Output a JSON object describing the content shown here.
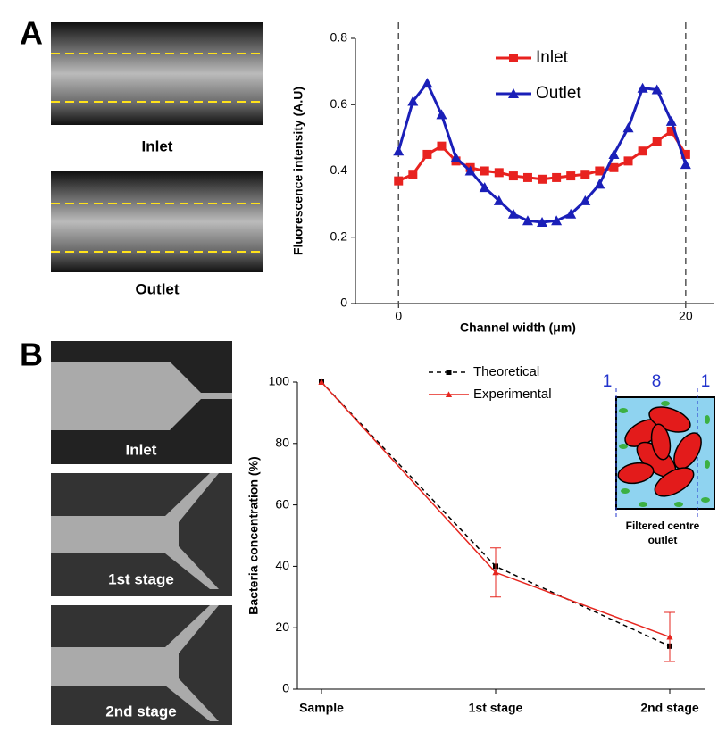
{
  "chart_data": [
    {
      "type": "line",
      "panel": "A",
      "image_captions": [
        "Inlet",
        "Outlet"
      ],
      "xlabel": "Channel width (μm)",
      "ylabel": "Fluorescence intensity (A.U)",
      "x": [
        0,
        1,
        2,
        3,
        4,
        5,
        6,
        7,
        8,
        9,
        10,
        11,
        12,
        13,
        14,
        15,
        16,
        17,
        18,
        19,
        20
      ],
      "series": [
        {
          "name": "Inlet",
          "color": "#e8221f",
          "marker": "square",
          "values": [
            0.37,
            0.39,
            0.45,
            0.475,
            0.43,
            0.41,
            0.4,
            0.395,
            0.385,
            0.38,
            0.375,
            0.38,
            0.385,
            0.39,
            0.4,
            0.41,
            0.43,
            0.46,
            0.49,
            0.52,
            0.45
          ]
        },
        {
          "name": "Outlet",
          "color": "#1a1fb8",
          "marker": "triangle",
          "values": [
            0.46,
            0.61,
            0.665,
            0.57,
            0.44,
            0.4,
            0.35,
            0.31,
            0.27,
            0.25,
            0.245,
            0.25,
            0.27,
            0.31,
            0.36,
            0.45,
            0.53,
            0.65,
            0.645,
            0.55,
            0.42
          ]
        }
      ],
      "xlim": [
        -3,
        22
      ],
      "xticks": [
        0,
        20
      ],
      "vlines": [
        0,
        20
      ],
      "ylim": [
        0,
        0.8
      ],
      "yticks": [
        0,
        0.2,
        0.4,
        0.6,
        0.8
      ]
    },
    {
      "type": "line",
      "panel": "B",
      "image_captions": [
        "Inlet",
        "1st stage",
        "2nd stage"
      ],
      "ylabel": "Bacteria concentration (%)",
      "categories": [
        "Sample",
        "1st stage",
        "2nd stage"
      ],
      "series": [
        {
          "name": "Theoretical",
          "color": "#000000",
          "marker": "square",
          "dash": true,
          "values": [
            100,
            40,
            14
          ]
        },
        {
          "name": "Experimental",
          "color": "#e6261f",
          "marker": "triangle",
          "values": [
            100,
            38,
            17
          ],
          "errors": [
            null,
            8,
            8
          ]
        }
      ],
      "ylim": [
        0,
        100
      ],
      "yticks": [
        0,
        20,
        40,
        60,
        80,
        100
      ],
      "inset": {
        "labels": [
          "1",
          "8",
          "1"
        ],
        "caption": "Filtered centre outlet"
      }
    }
  ]
}
